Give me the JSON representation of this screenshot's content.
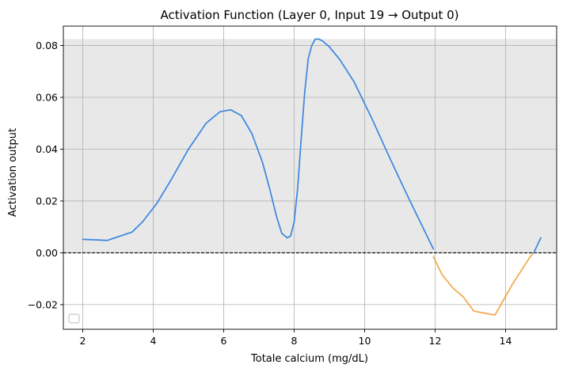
{
  "chart_data": {
    "type": "line",
    "title": "Activation Function (Layer 0, Input 19 → Output 0)",
    "xlabel": "Totale calcium (mg/dL)",
    "ylabel": "Activation output",
    "xlim": [
      1.45,
      15.45
    ],
    "ylim": [
      -0.0295,
      0.0875
    ],
    "xticks": [
      2,
      4,
      6,
      8,
      10,
      12,
      14
    ],
    "yticks": [
      -0.02,
      0.0,
      0.02,
      0.04,
      0.06,
      0.08
    ],
    "ytick_labels": [
      "−0.02",
      "0.00",
      "0.02",
      "0.04",
      "0.06",
      "0.08"
    ],
    "grid": true,
    "legend": "lower-left (empty)",
    "shaded_band": {
      "y0": 0.0,
      "y1": 0.0825,
      "color": "#e8e8e8"
    },
    "zero_line": {
      "y": 0.0,
      "style": "dashed",
      "color": "#000000"
    },
    "series": [
      {
        "color": "#3a86e0",
        "x": [
          2.0,
          2.7,
          3.4,
          3.7,
          4.1,
          4.5,
          5.0,
          5.5,
          5.9,
          6.2,
          6.5,
          6.8,
          7.1,
          7.3,
          7.5,
          7.65,
          7.8,
          7.9,
          8.0,
          8.1,
          8.2,
          8.3,
          8.4,
          8.5,
          8.6,
          8.7,
          8.8,
          9.0,
          9.3,
          9.7,
          10.2,
          10.7,
          11.2,
          11.7,
          11.95
        ],
        "y": [
          0.0052,
          0.0048,
          0.008,
          0.012,
          0.019,
          0.028,
          0.04,
          0.05,
          0.0545,
          0.0552,
          0.053,
          0.046,
          0.035,
          0.025,
          0.014,
          0.0075,
          0.0058,
          0.0065,
          0.012,
          0.025,
          0.044,
          0.062,
          0.075,
          0.08,
          0.0825,
          0.0825,
          0.0818,
          0.0795,
          0.0745,
          0.066,
          0.052,
          0.037,
          0.0225,
          0.0085,
          0.0015
        ]
      },
      {
        "color": "#f0a848",
        "x": [
          11.95,
          12.2,
          12.5,
          12.8,
          13.1,
          13.7,
          14.2,
          14.7,
          14.8
        ],
        "y": [
          -0.0015,
          -0.0085,
          -0.0135,
          -0.017,
          -0.0225,
          -0.024,
          -0.012,
          -0.0015,
          0.0
        ]
      },
      {
        "color": "#3a86e0",
        "x": [
          14.8,
          15.0
        ],
        "y": [
          0.0,
          0.0058
        ]
      }
    ]
  }
}
